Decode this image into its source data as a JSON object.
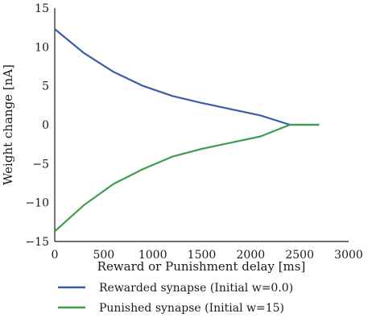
{
  "chart_data": {
    "type": "line",
    "title": "",
    "xlabel": "Reward or Punishment delay [ms]",
    "ylabel": "Weight change [nA]",
    "xlim": [
      0,
      3000
    ],
    "ylim": [
      -15,
      15
    ],
    "xticks": [
      0,
      500,
      1000,
      1500,
      2000,
      2500,
      3000
    ],
    "yticks": [
      -15,
      -10,
      -5,
      0,
      5,
      10,
      15
    ],
    "grid": false,
    "legend_position": "bottom",
    "series": [
      {
        "name": "Rewarded synapse (Initial w=0.0)",
        "color": "#3a5ea8",
        "x": [
          0,
          300,
          600,
          900,
          1200,
          1500,
          1800,
          2100,
          2400,
          2700
        ],
        "y": [
          12.3,
          9.2,
          6.8,
          5.0,
          3.7,
          2.8,
          2.0,
          1.2,
          0.0,
          0.0
        ]
      },
      {
        "name": "Punished synapse (Initial w=15)",
        "color": "#3f9b4f",
        "x": [
          0,
          300,
          600,
          900,
          1200,
          1500,
          1800,
          2100,
          2400,
          2700
        ],
        "y": [
          -13.7,
          -10.3,
          -7.6,
          -5.7,
          -4.1,
          -3.1,
          -2.3,
          -1.5,
          0.0,
          0.0
        ]
      }
    ]
  }
}
